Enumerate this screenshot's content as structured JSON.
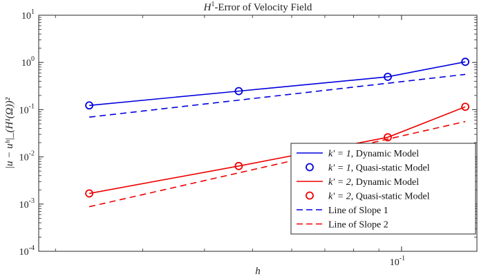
{
  "chart_data": {
    "type": "line",
    "title": "H¹-Error of Velocity Field",
    "title_base": "H",
    "title_sup": "1",
    "title_rest": "-Error of Velocity Field",
    "xlabel": "h",
    "ylabel": "|u − uʰ|_(H¹(Ω))²",
    "x_scale": "log",
    "y_scale": "log",
    "xlim": [
      0.0185,
      0.142
    ],
    "ylim": [
      0.0001,
      10
    ],
    "x_ticks": [
      {
        "value": 0.1,
        "mantissa": "10",
        "exponent": "-1"
      }
    ],
    "y_ticks": [
      {
        "value": 0.0001,
        "mantissa": "10",
        "exponent": "-4"
      },
      {
        "value": 0.001,
        "mantissa": "10",
        "exponent": "-3"
      },
      {
        "value": 0.01,
        "mantissa": "10",
        "exponent": "-2"
      },
      {
        "value": 0.1,
        "mantissa": "10",
        "exponent": "-1"
      },
      {
        "value": 1,
        "mantissa": "10",
        "exponent": "0"
      },
      {
        "value": 10,
        "mantissa": "10",
        "exponent": "1"
      }
    ],
    "grid": false,
    "legend_position": "bottom-right",
    "series": [
      {
        "name": "k′ = 1, Dynamic Model",
        "legend_math": "k′ = 1",
        "legend_text": ", Dynamic Model",
        "style": "solid",
        "marker": "none",
        "color": "#0000dd",
        "x": [
          0.0234,
          0.0469,
          0.0938,
          0.1345
        ],
        "y": [
          0.123,
          0.247,
          0.496,
          1.03
        ]
      },
      {
        "name": "k′ = 1, Quasi-static Model",
        "legend_math": "k′ = 1",
        "legend_text": ", Quasi-static Model",
        "style": "none",
        "marker": "circle",
        "color": "#0000dd",
        "x": [
          0.0234,
          0.0469,
          0.0938,
          0.1345
        ],
        "y": [
          0.123,
          0.247,
          0.496,
          1.03
        ]
      },
      {
        "name": "k′ = 2, Dynamic Model",
        "legend_math": "k′ = 2",
        "legend_text": ", Dynamic Model",
        "style": "solid",
        "marker": "none",
        "color": "#ee0000",
        "x": [
          0.0234,
          0.0469,
          0.0938,
          0.1345
        ],
        "y": [
          0.00168,
          0.0064,
          0.026,
          0.115
        ]
      },
      {
        "name": "k′ = 2, Quasi-static Model",
        "legend_math": "k′ = 2",
        "legend_text": ", Quasi-static Model",
        "style": "none",
        "marker": "circle",
        "color": "#ee0000",
        "x": [
          0.0234,
          0.0469,
          0.0938,
          0.1345
        ],
        "y": [
          0.00168,
          0.0064,
          0.026,
          0.115
        ]
      },
      {
        "name": "Line of Slope 1",
        "legend_math": "",
        "legend_text": "Line of Slope 1",
        "style": "dashed",
        "marker": "none",
        "color": "#0000dd",
        "x": [
          0.0234,
          0.1345
        ],
        "y": [
          0.0695,
          0.558
        ]
      },
      {
        "name": "Line of Slope 2",
        "legend_math": "",
        "legend_text": "Line of Slope 2",
        "style": "dashed",
        "marker": "none",
        "color": "#ee0000",
        "x": [
          0.0234,
          0.1345
        ],
        "y": [
          0.00088,
          0.056
        ]
      }
    ]
  }
}
